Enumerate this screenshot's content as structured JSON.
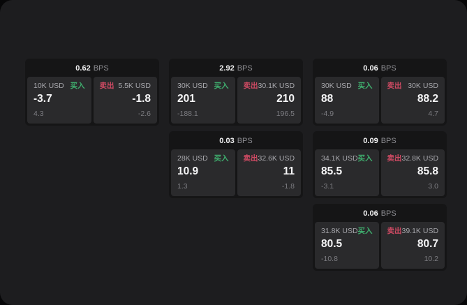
{
  "labels": {
    "bps_suffix": "BPS",
    "buy": "买入",
    "sell": "卖出"
  },
  "colors": {
    "panel_bg": "#1d1d1f",
    "card_bg": "#151516",
    "subcard_bg": "#2a2a2c",
    "buy_green": "#3fae6e",
    "sell_red": "#cf4a63"
  },
  "cards": [
    {
      "row": 1,
      "col": 1,
      "bps": "0.62",
      "buy": {
        "amount": "10K USD",
        "value": "-3.7",
        "delta": "4.3"
      },
      "sell": {
        "amount": "5.5K USD",
        "value": "-1.8",
        "delta": "-2.6"
      }
    },
    {
      "row": 1,
      "col": 2,
      "bps": "2.92",
      "buy": {
        "amount": "30K USD",
        "value": "201",
        "delta": "-188.1"
      },
      "sell": {
        "amount": "30.1K USD",
        "value": "210",
        "delta": "196.5"
      }
    },
    {
      "row": 1,
      "col": 3,
      "bps": "0.06",
      "buy": {
        "amount": "30K USD",
        "value": "88",
        "delta": "-4.9"
      },
      "sell": {
        "amount": "30K USD",
        "value": "88.2",
        "delta": "4.7"
      }
    },
    {
      "row": 2,
      "col": 2,
      "bps": "0.03",
      "buy": {
        "amount": "28K USD",
        "value": "10.9",
        "delta": "1.3"
      },
      "sell": {
        "amount": "32.6K USD",
        "value": "11",
        "delta": "-1.8"
      }
    },
    {
      "row": 2,
      "col": 3,
      "bps": "0.09",
      "buy": {
        "amount": "34.1K USD",
        "value": "85.5",
        "delta": "-3.1"
      },
      "sell": {
        "amount": "32.8K USD",
        "value": "85.8",
        "delta": "3.0"
      }
    },
    {
      "row": 3,
      "col": 3,
      "bps": "0.06",
      "buy": {
        "amount": "31.8K USD",
        "value": "80.5",
        "delta": "-10.8"
      },
      "sell": {
        "amount": "39.1K USD",
        "value": "80.7",
        "delta": "10.2"
      }
    }
  ]
}
